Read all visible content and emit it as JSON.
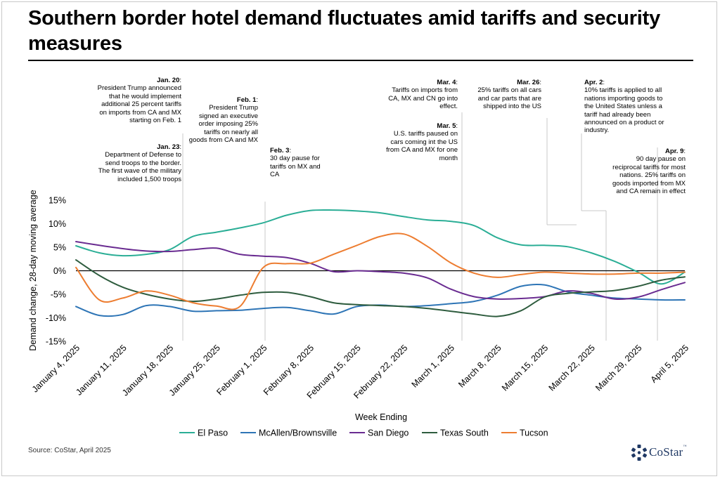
{
  "title": "Southern border hotel demand fluctuates amid tariffs and security measures",
  "source": "Source: CoStar, April 2025",
  "logo": {
    "text": "CoStar",
    "tm": "™",
    "color": "#1f3864"
  },
  "chart_data": {
    "type": "line",
    "xlabel": "Week Ending",
    "ylabel": "Demand change, 28-day moving average",
    "ylim": [
      -15,
      15
    ],
    "yticks": [
      "-15%",
      "-10%",
      "-5%",
      "0%",
      "5%",
      "10%",
      "15%"
    ],
    "categories": [
      "January 4, 2025",
      "January 11, 2025",
      "January 18, 2025",
      "January 25, 2025",
      "February 1, 2025",
      "February 8, 2025",
      "February 15, 2025",
      "February 22, 2025",
      "March 1, 2025",
      "March 8, 2025",
      "March 15, 2025",
      "March 22, 2025",
      "March 29, 2025",
      "April 5, 2025"
    ],
    "x": [
      0,
      0.5,
      1,
      1.5,
      2,
      2.5,
      3,
      3.5,
      4,
      4.5,
      5,
      5.5,
      6,
      6.5,
      7,
      7.5,
      8,
      8.5,
      9,
      9.5,
      10,
      10.5,
      11,
      11.5,
      12,
      12.5,
      13
    ],
    "legend_position": "bottom",
    "series": [
      {
        "name": "El Paso",
        "color": "#2bae96",
        "values": [
          5.3,
          3.8,
          3.2,
          3.5,
          4.5,
          7.3,
          8.2,
          9.1,
          10.2,
          11.8,
          12.8,
          12.9,
          12.7,
          12.3,
          11.5,
          10.8,
          10.5,
          9.6,
          7.0,
          5.5,
          5.4,
          5.1,
          3.8,
          2.0,
          -0.3,
          -2.8,
          -0.3
        ]
      },
      {
        "name": "McAllen/Brownsville",
        "color": "#2e75b6",
        "values": [
          -7.6,
          -9.5,
          -9.3,
          -7.4,
          -7.6,
          -8.6,
          -8.5,
          -8.4,
          -8.0,
          -7.8,
          -8.5,
          -9.2,
          -7.6,
          -7.3,
          -7.6,
          -7.4,
          -7.0,
          -6.5,
          -5.2,
          -3.3,
          -3.0,
          -4.5,
          -5.2,
          -5.8,
          -6.0,
          -6.2,
          -6.2
        ]
      },
      {
        "name": "San Diego",
        "color": "#6a2c91",
        "values": [
          6.2,
          5.4,
          4.7,
          4.2,
          4.1,
          4.5,
          4.8,
          3.5,
          3.1,
          2.8,
          1.6,
          -0.2,
          0.0,
          -0.2,
          -0.5,
          -1.5,
          -3.9,
          -5.5,
          -6.0,
          -5.9,
          -5.5,
          -4.3,
          -4.8,
          -6.0,
          -5.6,
          -4.0,
          -2.5
        ]
      },
      {
        "name": "Texas South",
        "color": "#2e5c3e",
        "values": [
          2.3,
          -1.0,
          -3.5,
          -5.0,
          -6.0,
          -6.5,
          -6.0,
          -5.2,
          -4.6,
          -4.6,
          -5.5,
          -6.8,
          -7.2,
          -7.4,
          -7.6,
          -8.0,
          -8.6,
          -9.2,
          -9.7,
          -8.5,
          -5.6,
          -4.8,
          -4.5,
          -4.2,
          -3.3,
          -2.0,
          -1.3
        ]
      },
      {
        "name": "Tucson",
        "color": "#ed7d31",
        "values": [
          0.7,
          -6.2,
          -5.8,
          -4.3,
          -5.2,
          -6.8,
          -7.5,
          -7.6,
          0.7,
          1.5,
          1.6,
          3.5,
          5.4,
          7.3,
          7.8,
          5.2,
          1.7,
          -0.5,
          -1.4,
          -0.8,
          -0.3,
          -0.5,
          -0.7,
          -0.7,
          -0.5,
          -0.5,
          -0.3
        ]
      }
    ],
    "annotations": [
      {
        "title": "Jan. 20",
        "text": "President Trump announced that he would implement additional 25 percent tariffs on imports from CA and MX  starting on Feb. 1"
      },
      {
        "title": "Jan. 23",
        "text": "Department of Defense to send troops to the border. The first wave of the military included 1,500 troops"
      },
      {
        "title": "Feb. 1",
        "text": "President Trump signed an executive order imposing 25% tariffs on nearly all goods from CA and MX"
      },
      {
        "title": "Feb. 3",
        "text": "30 day pause for tariffs on MX and CA"
      },
      {
        "title": "Mar. 4",
        "text": "Tariffs on imports from CA, MX and CN go into effect."
      },
      {
        "title": "Mar. 5",
        "text": "U.S. tariffs paused on cars coming int the US from CA and MX for one month"
      },
      {
        "title": "Mar. 26",
        "text": "25% tariffs on all cars and car parts that are shipped into the US"
      },
      {
        "title": "Apr. 2",
        "text": "10% tariffs is applied to all nations importing goods to the United States unless a tariff had already been announced on a product or industry."
      },
      {
        "title": "Apr. 9",
        "text": "90 day pause on reciprocal tariffs for most nations. 25% tariffs on goods imported from MX and CA remain in effect"
      }
    ]
  }
}
